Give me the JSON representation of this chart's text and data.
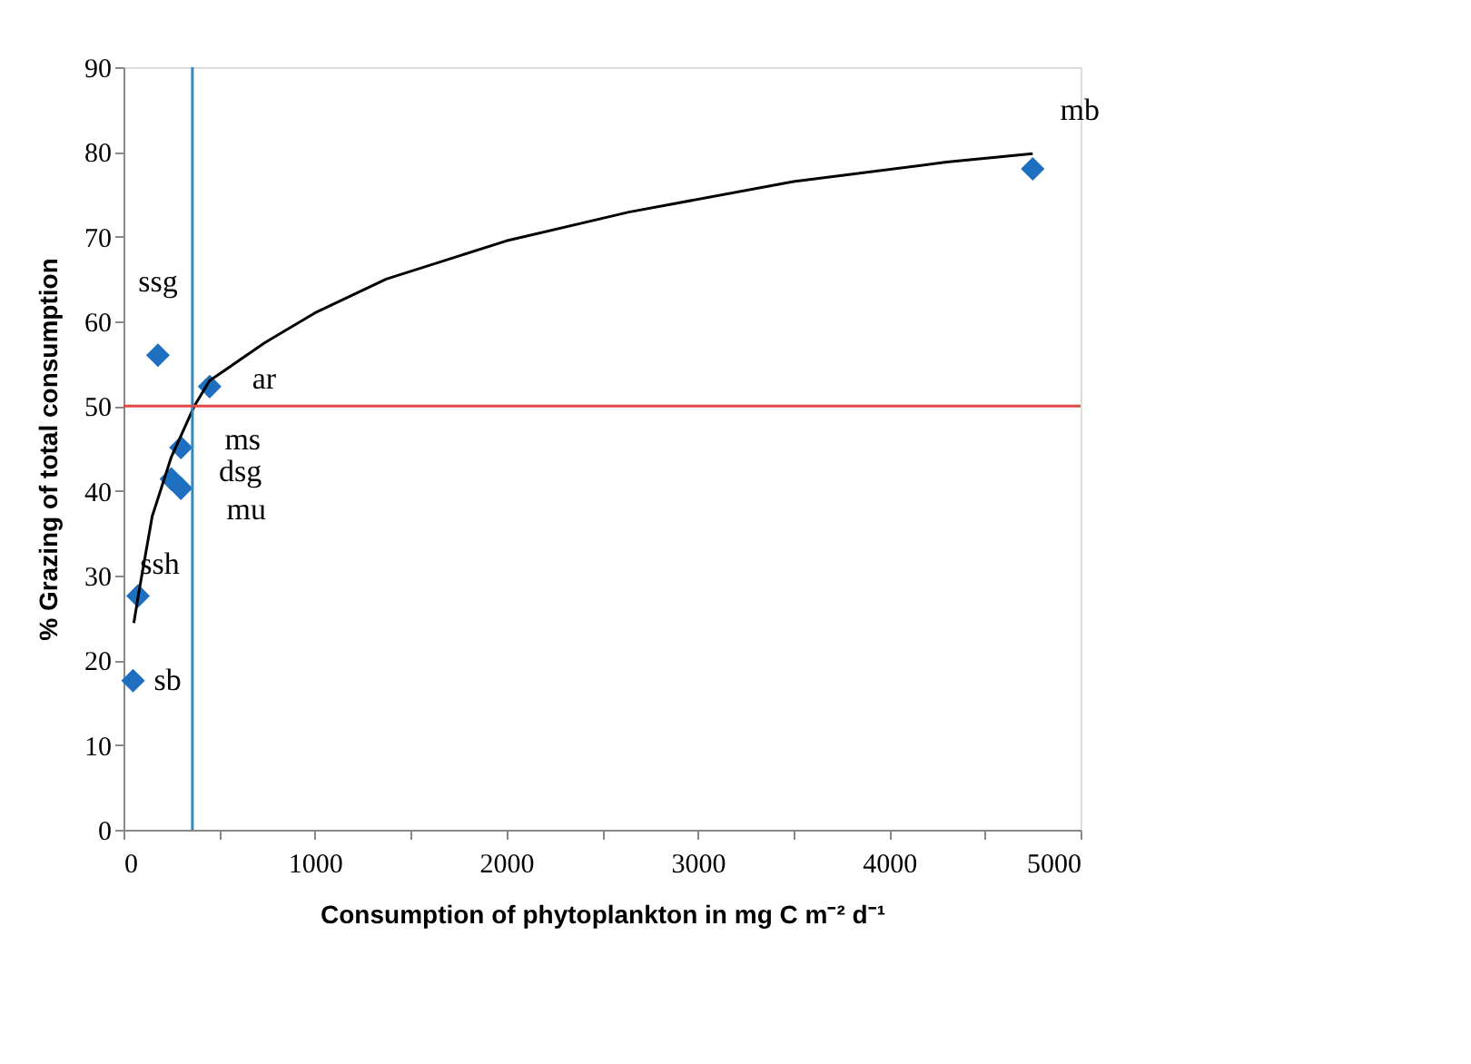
{
  "chart_data": {
    "type": "scatter",
    "xlabel": "Consumption of phytoplankton in mg C m⁻² d⁻¹",
    "ylabel": "% Grazing of total consumption",
    "series": [
      {
        "color": "#1f6fc0",
        "marker": "diamond",
        "x": [
          180,
          450,
          300,
          250,
          300,
          76,
          50,
          4750
        ],
        "values": [
          56,
          52.3,
          45.1,
          41.4,
          40.3,
          27.6,
          17.6,
          78
        ],
        "value_labels": [
          "ssg",
          "ar",
          "ms",
          "dsg",
          "mu",
          "ssh",
          "sb",
          "mb"
        ]
      },
      {
        "type": "line",
        "color": "#000000",
        "marker": "none",
        "line_style": "solid",
        "x": [
          54,
          80,
          150,
          250,
          370,
          450,
          740,
          1000,
          1373,
          2000,
          2640,
          3500,
          4300,
          4750
        ],
        "values": [
          24.4,
          28,
          37,
          44,
          50,
          53,
          57.5,
          61,
          65,
          69.5,
          72.9,
          76.5,
          78.8,
          79.8
        ]
      }
    ],
    "ref_lines": [
      {
        "axis": "x",
        "value": 360,
        "color": "#3a86b8"
      },
      {
        "axis": "y",
        "value": 50,
        "color": "#e04a45"
      }
    ],
    "xlim": [
      0,
      5000
    ],
    "ylim": [
      0,
      90
    ],
    "xticks": [
      0,
      {
        "value": 500,
        "label": null
      },
      1000,
      {
        "value": 1500,
        "label": null
      },
      2000,
      {
        "value": 2500,
        "label": null
      },
      3000,
      {
        "value": 3500,
        "label": null
      },
      4000,
      {
        "value": 4500,
        "label": null
      },
      5000
    ],
    "yticks": [
      0,
      10,
      20,
      30,
      40,
      50,
      60,
      70,
      80,
      90
    ],
    "grid": false
  }
}
